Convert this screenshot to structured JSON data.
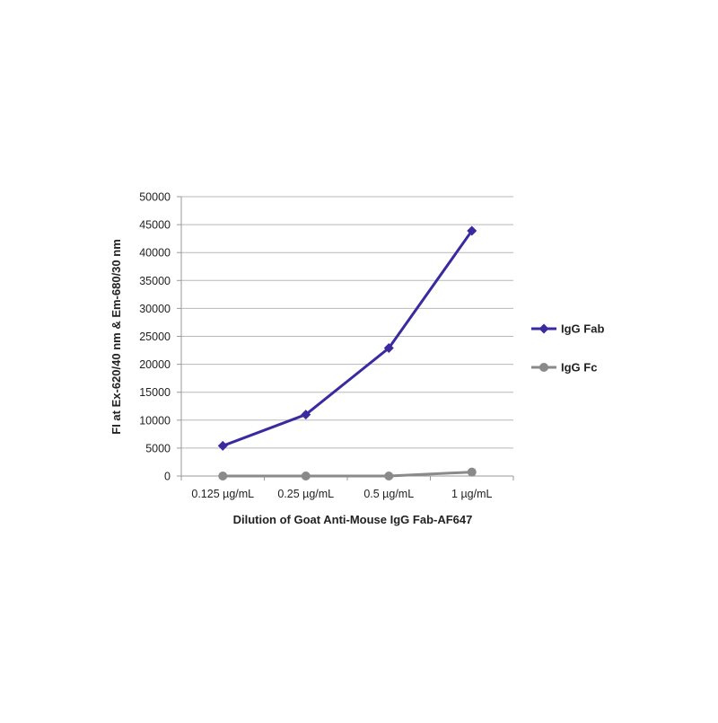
{
  "chart_data": {
    "type": "line",
    "title": "",
    "xlabel": "Dilution of Goat Anti-Mouse IgG Fab-AF647",
    "ylabel": "FI at Ex-620/40 nm & Em-680/30 nm",
    "categories": [
      "0.125 µg/mL",
      "0.25 µg/mL",
      "0.5 µg/mL",
      "1 µg/mL"
    ],
    "ylim": [
      0,
      50000
    ],
    "yticks": [
      0,
      5000,
      10000,
      15000,
      20000,
      25000,
      30000,
      35000,
      40000,
      45000,
      50000
    ],
    "ytick_labels": [
      "0",
      "5000",
      "10000",
      "15000",
      "20000",
      "25000",
      "30000",
      "35000",
      "40000",
      "45000",
      "50000"
    ],
    "grid": "horizontal",
    "legend": "right",
    "series": [
      {
        "name": "IgG Fab",
        "values": [
          5400,
          11000,
          22900,
          43900
        ],
        "color": "#3a2aa0",
        "marker": "diamond"
      },
      {
        "name": "IgG Fc",
        "values": [
          0,
          0,
          0,
          700
        ],
        "color": "#8a8a8a",
        "marker": "circle"
      }
    ]
  }
}
